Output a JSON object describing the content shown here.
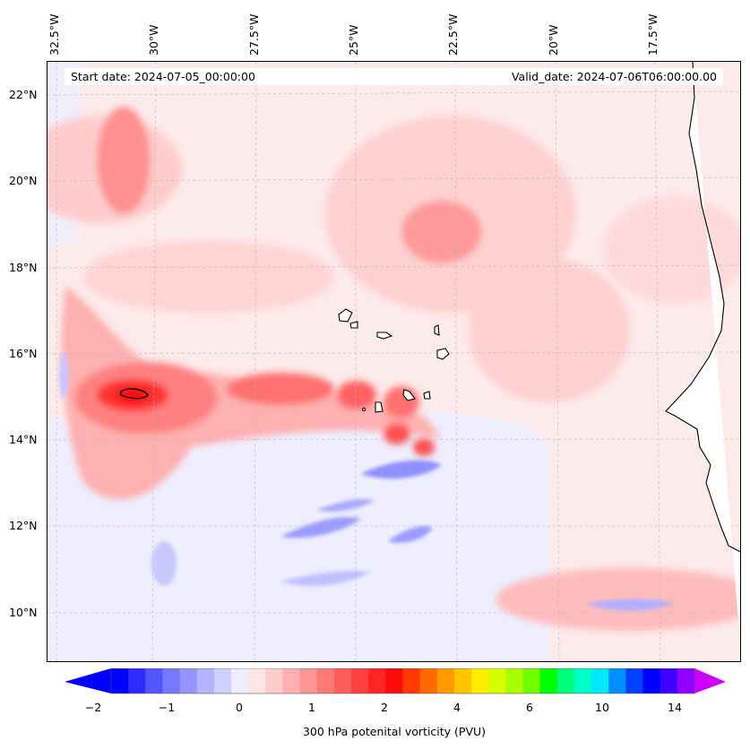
{
  "header": {
    "start_date": "Start date: 2024-07-05_00:00:00",
    "valid_date": "Valid_date: 2024-07-06T06:00:00.00"
  },
  "longitude_labels": [
    "32.5°W",
    "30°W",
    "27.5°W",
    "25°W",
    "22.5°W",
    "20°W",
    "17.5°W"
  ],
  "latitude_labels": [
    "22°N",
    "20°N",
    "18°N",
    "16°N",
    "14°N",
    "12°N",
    "10°N"
  ],
  "colorbar": {
    "label": "300 hPa potenital vorticity (PVU)",
    "tick_labels": [
      "−2",
      "−1",
      "0",
      "1",
      "2",
      "4",
      "6",
      "10",
      "14"
    ],
    "colors": [
      "#0000ff",
      "#2b2bff",
      "#5555ff",
      "#7777ff",
      "#9595ff",
      "#b3b3ff",
      "#d0d0ff",
      "#eeeeff",
      "#ffe6e6",
      "#ffcccc",
      "#ffb0b0",
      "#ff9494",
      "#ff7878",
      "#ff5c5c",
      "#ff4040",
      "#ff2525",
      "#ff0a0a",
      "#ff3a00",
      "#ff6a00",
      "#ff9a00",
      "#ffc400",
      "#ffee00",
      "#d8ff00",
      "#a8ff00",
      "#70ff00",
      "#00ff00",
      "#00ff80",
      "#00ffc8",
      "#00e8ff",
      "#0090ff",
      "#0040ff",
      "#0000ff",
      "#4000ff",
      "#9000ff"
    ],
    "extend_min_color": "#0000ff",
    "extend_max_color": "#cc00ff"
  },
  "map": {
    "background_color": "#fdeaea",
    "high_pv_color": "#ff3030",
    "low_pv_color": "#7b7bff"
  }
}
